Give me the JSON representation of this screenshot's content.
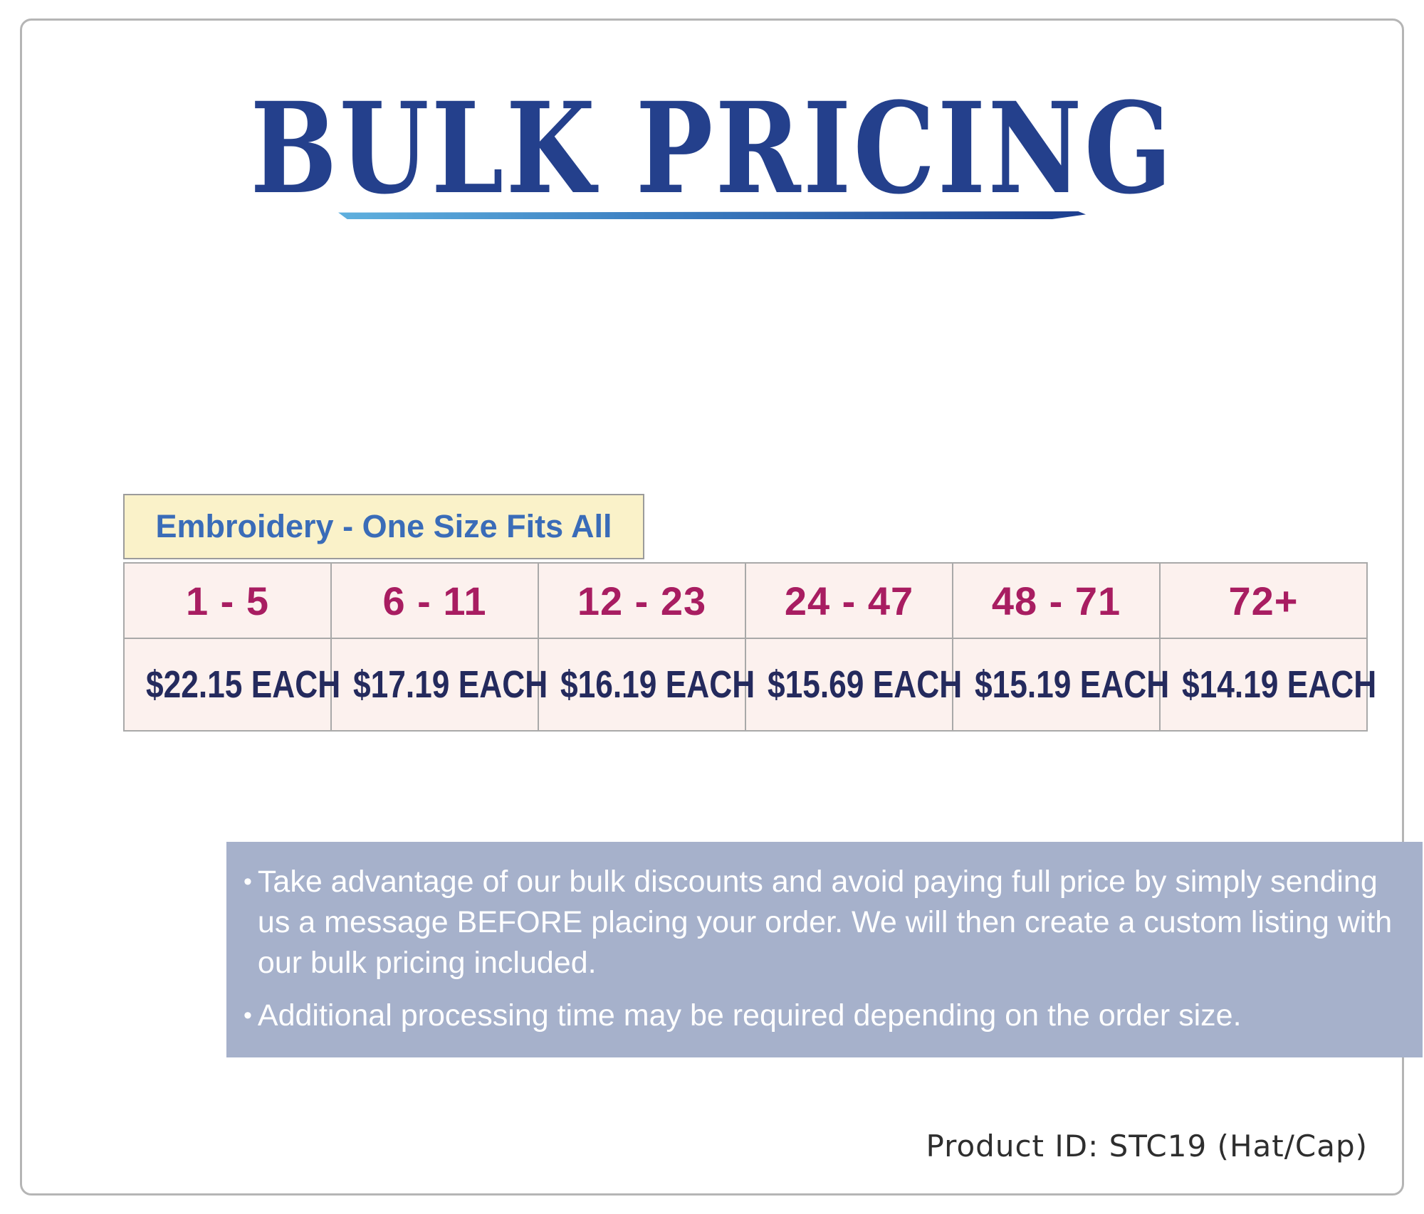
{
  "title": "BULK PRICING",
  "pricing": {
    "header": "Embroidery - One Size Fits All",
    "tiers": [
      {
        "quantity": "1 - 5",
        "price": "$22.15 EACH"
      },
      {
        "quantity": "6 - 11",
        "price": "$17.19 EACH"
      },
      {
        "quantity": "12 - 23",
        "price": "$16.19 EACH"
      },
      {
        "quantity": "24 - 47",
        "price": "$15.69 EACH"
      },
      {
        "quantity": "48 - 71",
        "price": "$15.19 EACH"
      },
      {
        "quantity": "72+",
        "price": "$14.19 EACH"
      }
    ]
  },
  "bullet": "•",
  "notes": [
    "Take advantage of our bulk discounts and avoid paying full price by simply sending us a message BEFORE placing your order. We will then create a custom listing with our bulk pricing included.",
    "Additional processing time may be required depending on the order size."
  ],
  "footer": {
    "product_id": "Product ID: STC19 (Hat/Cap)"
  },
  "colors": {
    "title_blue": "#24408c",
    "underline_gradient_start": "#5fb0de",
    "underline_gradient_end": "#1d3e8f",
    "category_header_bg": "#faf2c9",
    "category_header_text": "#3a6cb8",
    "cell_bg": "#fcf1ee",
    "cell_border": "#a9a9a9",
    "quantity_text": "#a81d61",
    "price_text": "#242a5d",
    "notes_bg": "#a6b1cb",
    "notes_text": "#ffffff",
    "frame_border": "#b5b5b5"
  }
}
